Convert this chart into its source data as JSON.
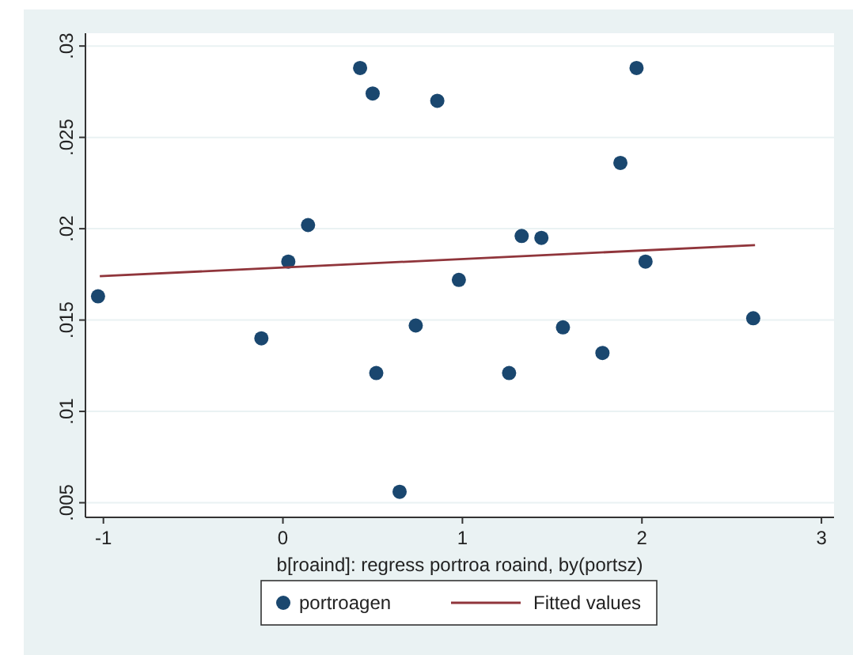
{
  "chart_data": {
    "type": "scatter",
    "xlabel": "b[roaind]: regress portroa roaind, by(portsz)",
    "xlim": [
      -1.1,
      3.07
    ],
    "ylim": [
      0.0042,
      0.0307
    ],
    "xticks": [
      -1,
      0,
      1,
      2,
      3
    ],
    "yticks": [
      {
        "value": 0.005,
        "label": ".005"
      },
      {
        "value": 0.01,
        "label": ".01"
      },
      {
        "value": 0.015,
        "label": ".015"
      },
      {
        "value": 0.02,
        "label": ".02"
      },
      {
        "value": 0.025,
        "label": ".025"
      },
      {
        "value": 0.03,
        "label": ".03"
      }
    ],
    "grid": "y",
    "legend": "bottom",
    "series": [
      {
        "name": "portroagen",
        "color": "#1a476f",
        "marker": "circle",
        "x": [
          -1.03,
          -0.12,
          0.03,
          0.14,
          0.43,
          0.5,
          0.52,
          0.65,
          0.74,
          0.86,
          0.98,
          1.26,
          1.33,
          1.44,
          1.56,
          1.78,
          1.88,
          1.97,
          2.02,
          2.62
        ],
        "values": [
          0.0163,
          0.014,
          0.0182,
          0.0202,
          0.0288,
          0.0274,
          0.0121,
          0.0056,
          0.0147,
          0.027,
          0.0172,
          0.0121,
          0.0196,
          0.0195,
          0.0146,
          0.0132,
          0.0236,
          0.0288,
          0.0182,
          0.0151
        ]
      },
      {
        "name": "Fitted values",
        "type": "line",
        "color": "#90353b",
        "x": [
          -1.02,
          2.63
        ],
        "values": [
          0.0174,
          0.0191
        ]
      }
    ]
  }
}
